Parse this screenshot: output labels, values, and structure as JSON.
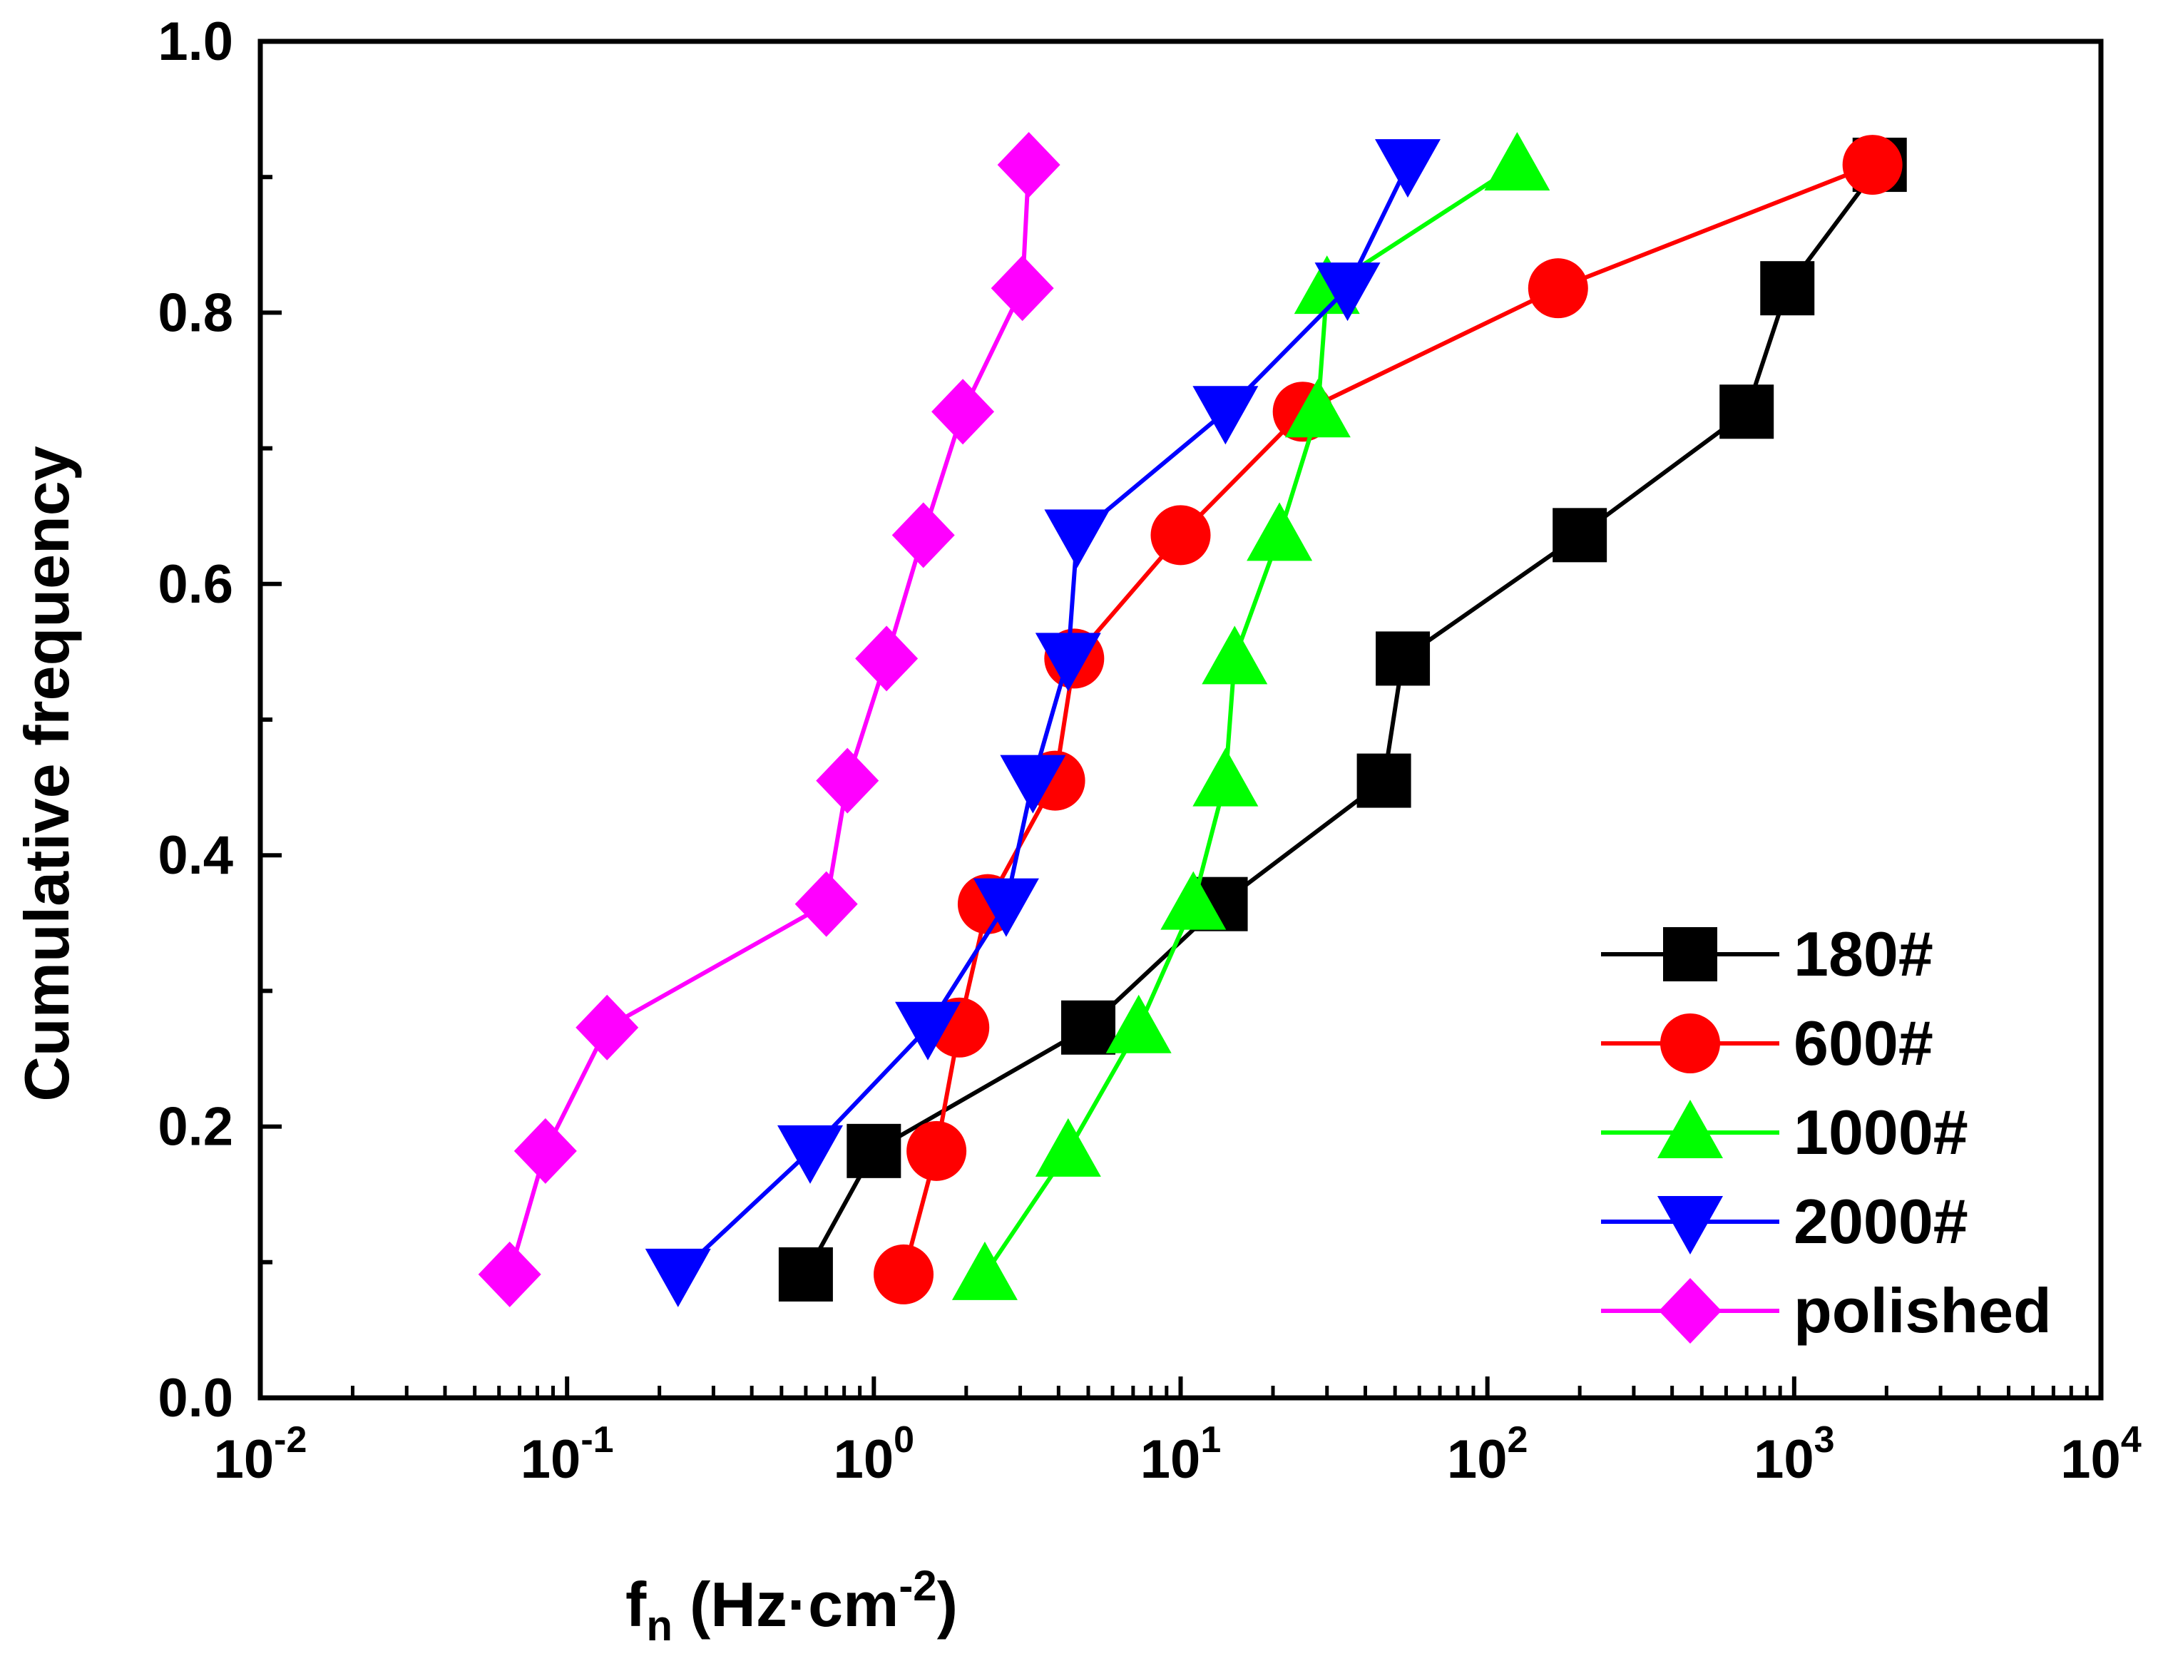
{
  "chart_data": {
    "type": "line",
    "title": "",
    "xlabel": "f",
    "xlabel_sub": "n",
    "xlabel_unit": "(Hz·cm",
    "xlabel_sup": "-2",
    "xlabel_close": ")",
    "ylabel": "Cumulative frequency",
    "xscale": "log",
    "xlim": [
      0.01,
      10000
    ],
    "ylim": [
      0.0,
      1.0
    ],
    "grid": false,
    "legend_position": "bottom-right",
    "x_ticks": [
      {
        "value": 0.01,
        "base": "10",
        "exp": "-2"
      },
      {
        "value": 0.1,
        "base": "10",
        "exp": "-1"
      },
      {
        "value": 1,
        "base": "10",
        "exp": "0"
      },
      {
        "value": 10,
        "base": "10",
        "exp": "1"
      },
      {
        "value": 100,
        "base": "10",
        "exp": "2"
      },
      {
        "value": 1000,
        "base": "10",
        "exp": "3"
      },
      {
        "value": 10000,
        "base": "10",
        "exp": "4"
      }
    ],
    "y_ticks": [
      {
        "value": 0.0,
        "label": "0.0"
      },
      {
        "value": 0.2,
        "label": "0.2"
      },
      {
        "value": 0.4,
        "label": "0.4"
      },
      {
        "value": 0.6,
        "label": "0.6"
      },
      {
        "value": 0.8,
        "label": "0.8"
      },
      {
        "value": 1.0,
        "label": "1.0"
      }
    ],
    "series": [
      {
        "name": "180#",
        "color": "#000000",
        "marker": "square",
        "x": [
          0.6,
          1.0,
          5.0,
          13.5,
          46,
          53,
          200,
          700,
          950,
          1900
        ],
        "y": [
          0.091,
          0.182,
          0.273,
          0.364,
          0.455,
          0.545,
          0.636,
          0.727,
          0.818,
          0.909
        ]
      },
      {
        "name": "600#",
        "color": "#ff0000",
        "marker": "circle",
        "x": [
          1.25,
          1.6,
          1.9,
          2.35,
          3.9,
          4.5,
          10,
          25,
          170,
          1800
        ],
        "y": [
          0.091,
          0.182,
          0.273,
          0.364,
          0.455,
          0.545,
          0.636,
          0.727,
          0.818,
          0.909
        ]
      },
      {
        "name": "1000#",
        "color": "#00ff00",
        "marker": "triangle-up",
        "x": [
          2.3,
          4.3,
          7.3,
          11,
          14,
          15,
          21,
          28,
          30,
          125
        ],
        "y": [
          0.091,
          0.182,
          0.273,
          0.364,
          0.455,
          0.545,
          0.636,
          0.727,
          0.818,
          0.909
        ]
      },
      {
        "name": "2000#",
        "color": "#0000ff",
        "marker": "triangle-down",
        "x": [
          0.23,
          0.62,
          1.5,
          2.7,
          3.3,
          4.3,
          4.6,
          14,
          35,
          55
        ],
        "y": [
          0.091,
          0.182,
          0.273,
          0.364,
          0.455,
          0.545,
          0.636,
          0.727,
          0.818,
          0.909
        ]
      },
      {
        "name": "polished",
        "color": "#ff00ff",
        "marker": "diamond",
        "x": [
          0.065,
          0.085,
          0.135,
          0.7,
          0.82,
          1.1,
          1.45,
          1.95,
          3.05,
          3.2
        ],
        "y": [
          0.091,
          0.182,
          0.273,
          0.364,
          0.455,
          0.545,
          0.636,
          0.727,
          0.818,
          0.909
        ]
      }
    ]
  }
}
